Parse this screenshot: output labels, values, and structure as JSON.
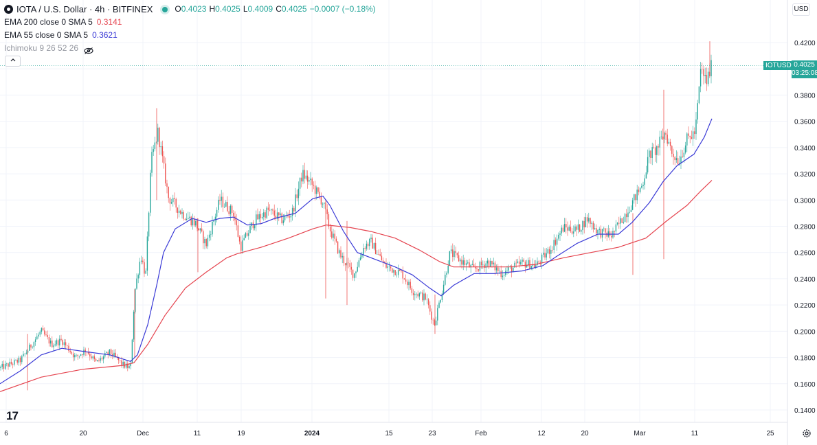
{
  "header": {
    "title": "IOTA / U.S. Dollar · 4h · BITFINEX",
    "ohlc": [
      {
        "k": "O",
        "v": "0.4023"
      },
      {
        "k": "H",
        "v": "0.4025"
      },
      {
        "k": "L",
        "v": "0.4009"
      },
      {
        "k": "C",
        "v": "0.4025"
      }
    ],
    "change": "−0.0007 (−0.18%)"
  },
  "indicators": [
    {
      "name": "EMA 200 close 0 SMA 5",
      "value": "0.3141",
      "color": "#e5434e"
    },
    {
      "name": "EMA 55 close 0 SMA 5",
      "value": "0.3621",
      "color": "#3a3ad6"
    },
    {
      "name": "Ichimoku 9 26 52 26",
      "value": "",
      "color": "#9598a1"
    }
  ],
  "price_axis": {
    "currency": "USD",
    "last_symbol": "IOTUSD",
    "last_price": "0.4025",
    "countdown": "03:25:08"
  },
  "logo_text": "17",
  "colors": {
    "up": "#26a69a",
    "down": "#ef5350",
    "ema200": "#e5434e",
    "ema55": "#3a3ad6",
    "grid": "#f0f3fa"
  },
  "chart_data": {
    "type": "line",
    "symbol": "IOTUSD",
    "x_ticks": [
      "6",
      "20",
      "Dec",
      "11",
      "19",
      "2024",
      "15",
      "23",
      "Feb",
      "12",
      "20",
      "Mar",
      "11",
      "25"
    ],
    "y_ticks": [
      0.14,
      0.16,
      0.18,
      0.2,
      0.22,
      0.24,
      0.26,
      0.28,
      0.3,
      0.32,
      0.34,
      0.36,
      0.38,
      0.4,
      0.42
    ],
    "ylim": [
      0.128,
      0.44
    ],
    "x_labels_major": [
      "2024"
    ],
    "series": [
      {
        "name": "EMA 200 close 0 SMA 5",
        "points": [
          [
            0,
            0.154
          ],
          [
            60,
            0.165
          ],
          [
            120,
            0.171
          ],
          [
            180,
            0.174
          ],
          [
            195,
            0.176
          ],
          [
            215,
            0.19
          ],
          [
            240,
            0.212
          ],
          [
            270,
            0.233
          ],
          [
            300,
            0.245
          ],
          [
            330,
            0.256
          ],
          [
            345,
            0.259
          ],
          [
            380,
            0.264
          ],
          [
            420,
            0.271
          ],
          [
            455,
            0.278
          ],
          [
            475,
            0.281
          ],
          [
            510,
            0.279
          ],
          [
            540,
            0.276
          ],
          [
            575,
            0.271
          ],
          [
            610,
            0.262
          ],
          [
            640,
            0.253
          ],
          [
            660,
            0.249
          ],
          [
            700,
            0.249
          ],
          [
            740,
            0.249
          ],
          [
            780,
            0.251
          ],
          [
            820,
            0.256
          ],
          [
            860,
            0.26
          ],
          [
            900,
            0.264
          ],
          [
            940,
            0.271
          ],
          [
            970,
            0.284
          ],
          [
            1000,
            0.296
          ],
          [
            1020,
            0.307
          ],
          [
            1036,
            0.315
          ]
        ]
      },
      {
        "name": "EMA 55 close 0 SMA 5",
        "points": [
          [
            0,
            0.16
          ],
          [
            30,
            0.17
          ],
          [
            60,
            0.182
          ],
          [
            90,
            0.187
          ],
          [
            130,
            0.184
          ],
          [
            160,
            0.182
          ],
          [
            190,
            0.177
          ],
          [
            200,
            0.182
          ],
          [
            215,
            0.205
          ],
          [
            228,
            0.235
          ],
          [
            238,
            0.26
          ],
          [
            255,
            0.278
          ],
          [
            280,
            0.286
          ],
          [
            300,
            0.283
          ],
          [
            320,
            0.286
          ],
          [
            340,
            0.287
          ],
          [
            360,
            0.281
          ],
          [
            380,
            0.282
          ],
          [
            400,
            0.286
          ],
          [
            430,
            0.29
          ],
          [
            455,
            0.301
          ],
          [
            470,
            0.303
          ],
          [
            480,
            0.296
          ],
          [
            500,
            0.276
          ],
          [
            520,
            0.26
          ],
          [
            545,
            0.255
          ],
          [
            575,
            0.249
          ],
          [
            600,
            0.243
          ],
          [
            625,
            0.233
          ],
          [
            642,
            0.227
          ],
          [
            660,
            0.235
          ],
          [
            690,
            0.244
          ],
          [
            720,
            0.244
          ],
          [
            760,
            0.246
          ],
          [
            790,
            0.25
          ],
          [
            810,
            0.257
          ],
          [
            840,
            0.267
          ],
          [
            870,
            0.274
          ],
          [
            900,
            0.274
          ],
          [
            920,
            0.283
          ],
          [
            945,
            0.298
          ],
          [
            965,
            0.314
          ],
          [
            985,
            0.326
          ],
          [
            1010,
            0.335
          ],
          [
            1025,
            0.348
          ],
          [
            1036,
            0.362
          ]
        ]
      }
    ],
    "price_path": [
      [
        0,
        0.172
      ],
      [
        30,
        0.178
      ],
      [
        60,
        0.2
      ],
      [
        75,
        0.19
      ],
      [
        90,
        0.193
      ],
      [
        110,
        0.18
      ],
      [
        125,
        0.186
      ],
      [
        140,
        0.176
      ],
      [
        160,
        0.184
      ],
      [
        180,
        0.174
      ],
      [
        190,
        0.172
      ],
      [
        196,
        0.23
      ],
      [
        205,
        0.258
      ],
      [
        212,
        0.242
      ],
      [
        220,
        0.33
      ],
      [
        230,
        0.352
      ],
      [
        245,
        0.302
      ],
      [
        265,
        0.29
      ],
      [
        285,
        0.282
      ],
      [
        300,
        0.266
      ],
      [
        320,
        0.3
      ],
      [
        340,
        0.29
      ],
      [
        350,
        0.264
      ],
      [
        370,
        0.284
      ],
      [
        390,
        0.292
      ],
      [
        410,
        0.285
      ],
      [
        425,
        0.29
      ],
      [
        440,
        0.32
      ],
      [
        455,
        0.311
      ],
      [
        470,
        0.298
      ],
      [
        480,
        0.278
      ],
      [
        495,
        0.258
      ],
      [
        515,
        0.243
      ],
      [
        530,
        0.265
      ],
      [
        540,
        0.268
      ],
      [
        560,
        0.25
      ],
      [
        585,
        0.244
      ],
      [
        600,
        0.231
      ],
      [
        620,
        0.225
      ],
      [
        632,
        0.205
      ],
      [
        645,
        0.235
      ],
      [
        655,
        0.26
      ],
      [
        670,
        0.254
      ],
      [
        690,
        0.247
      ],
      [
        710,
        0.253
      ],
      [
        730,
        0.244
      ],
      [
        760,
        0.252
      ],
      [
        780,
        0.25
      ],
      [
        800,
        0.262
      ],
      [
        820,
        0.279
      ],
      [
        840,
        0.277
      ],
      [
        855,
        0.286
      ],
      [
        870,
        0.276
      ],
      [
        890,
        0.273
      ],
      [
        905,
        0.285
      ],
      [
        920,
        0.298
      ],
      [
        935,
        0.312
      ],
      [
        945,
        0.335
      ],
      [
        955,
        0.338
      ],
      [
        968,
        0.352
      ],
      [
        978,
        0.336
      ],
      [
        988,
        0.33
      ],
      [
        1000,
        0.346
      ],
      [
        1012,
        0.352
      ],
      [
        1020,
        0.4
      ],
      [
        1028,
        0.39
      ],
      [
        1036,
        0.4025
      ]
    ]
  }
}
